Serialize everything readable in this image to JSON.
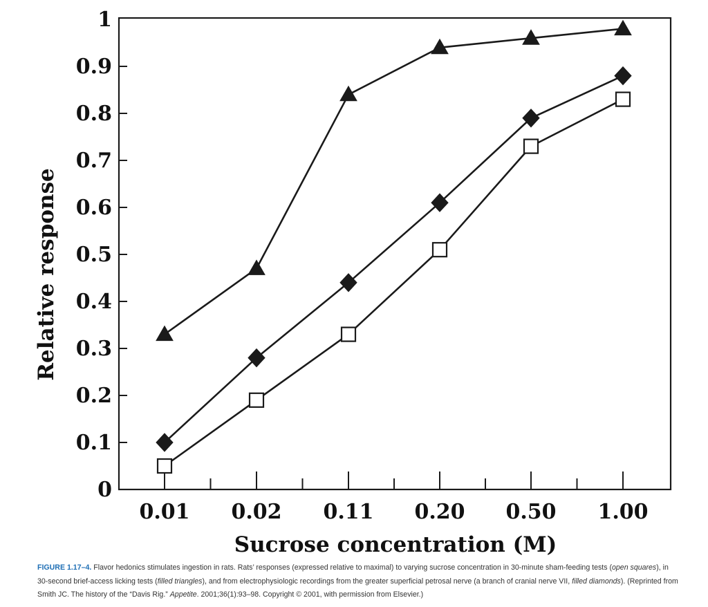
{
  "chart_data": {
    "type": "line",
    "categories": [
      "0.01",
      "0.02",
      "0.11",
      "0.20",
      "0.50",
      "1.00"
    ],
    "series": [
      {
        "marker": "filled-triangle",
        "values": [
          0.33,
          0.47,
          0.84,
          0.94,
          0.96,
          0.98
        ]
      },
      {
        "marker": "filled-diamond",
        "values": [
          0.1,
          0.28,
          0.44,
          0.61,
          0.79,
          0.88
        ]
      },
      {
        "marker": "open-square",
        "values": [
          0.05,
          0.19,
          0.33,
          0.51,
          0.73,
          0.83
        ]
      }
    ],
    "xlabel": "Sucrose concentration (M)",
    "ylabel": "Relative response",
    "ylim": [
      0,
      1
    ],
    "yticks": [
      "0",
      "0.1",
      "0.2",
      "0.3",
      "0.4",
      "0.5",
      "0.6",
      "0.7",
      "0.8",
      "0.9",
      "1"
    ],
    "grid": false,
    "line_color": "#1a1a1a"
  },
  "caption": {
    "label": "FIGURE 1.17–4.",
    "part1": " Flavor hedonics stimulates ingestion in rats. Rats’ responses (expressed relative to maximal) to varying sucrose concentration in 30-minute sham-feeding tests (",
    "em1": "open squares",
    "part2": "), in 30-second brief-access licking tests (",
    "em2": "filled triangles",
    "part3": "), and from electrophysiologic recordings from the greater superficial petrosal nerve (a branch of cranial nerve VII, ",
    "em3": "filled diamonds",
    "part4": "). (Reprinted from Smith JC. The history of the “Davis Rig.” ",
    "em4": "Appetite",
    "part5": ". 2001;36(1):93–98. Copyright © 2001, with permission from Elsevier.)"
  }
}
